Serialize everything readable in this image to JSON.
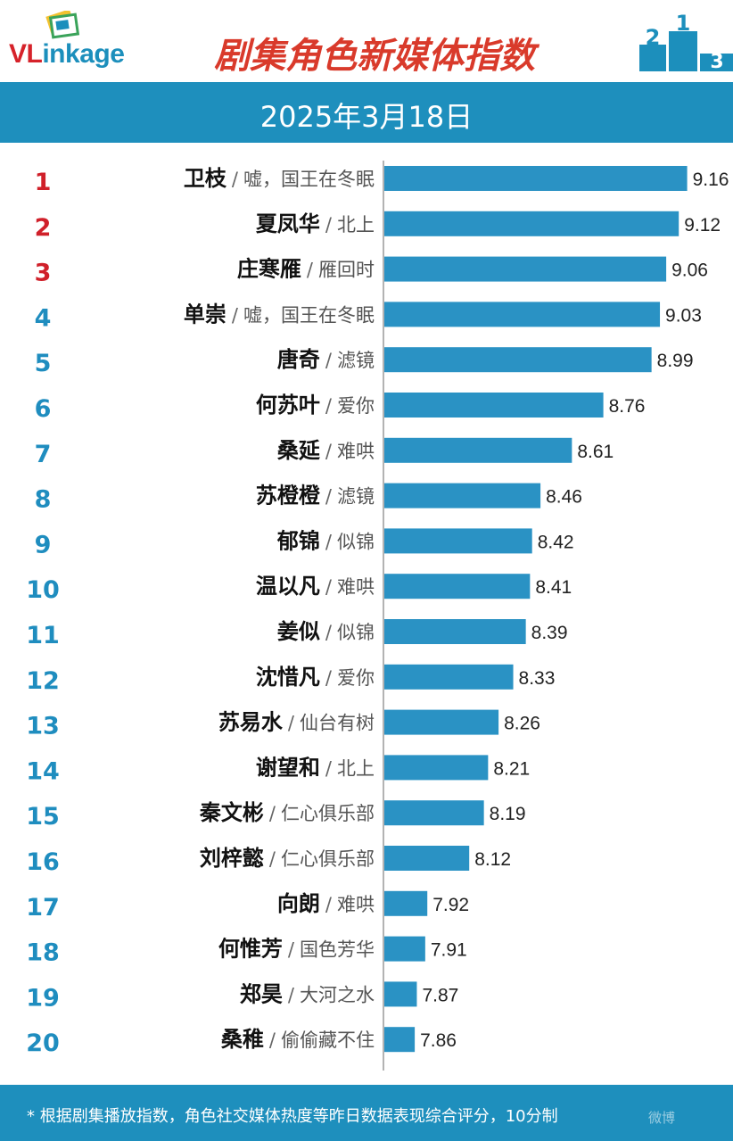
{
  "header": {
    "logo": {
      "prefix": "VL",
      "suffix": "inkage"
    },
    "title": "剧集角色新媒体指数",
    "date": "2025年3月18日",
    "podium_digits": [
      "2",
      "1",
      "3"
    ]
  },
  "colors": {
    "bar": "#2a92c4",
    "band": "#1e8fbd",
    "rank_top": "#d0202a",
    "rank_rest": "#1f8dbf",
    "title": "#d93a2b"
  },
  "chart_data": {
    "type": "bar",
    "orientation": "horizontal",
    "categories": [
      {
        "rank": "1",
        "character": "卫枝",
        "show": "嘘，国王在冬眠"
      },
      {
        "rank": "2",
        "character": "夏凤华",
        "show": "北上"
      },
      {
        "rank": "3",
        "character": "庄寒雁",
        "show": "雁回时"
      },
      {
        "rank": "4",
        "character": "单崇",
        "show": "嘘，国王在冬眠"
      },
      {
        "rank": "5",
        "character": "唐奇",
        "show": "滤镜"
      },
      {
        "rank": "6",
        "character": "何苏叶",
        "show": "爱你"
      },
      {
        "rank": "7",
        "character": "桑延",
        "show": "难哄"
      },
      {
        "rank": "8",
        "character": "苏橙橙",
        "show": "滤镜"
      },
      {
        "rank": "9",
        "character": "郁锦",
        "show": "似锦"
      },
      {
        "rank": "10",
        "character": "温以凡",
        "show": "难哄"
      },
      {
        "rank": "11",
        "character": "姜似",
        "show": "似锦"
      },
      {
        "rank": "12",
        "character": "沈惜凡",
        "show": "爱你"
      },
      {
        "rank": "13",
        "character": "苏易水",
        "show": "仙台有树"
      },
      {
        "rank": "14",
        "character": "谢望和",
        "show": "北上"
      },
      {
        "rank": "15",
        "character": "秦文彬",
        "show": "仁心俱乐部"
      },
      {
        "rank": "16",
        "character": "刘梓懿",
        "show": "仁心俱乐部"
      },
      {
        "rank": "17",
        "character": "向朗",
        "show": "难哄"
      },
      {
        "rank": "18",
        "character": "何惟芳",
        "show": "国色芳华"
      },
      {
        "rank": "19",
        "character": "郑昊",
        "show": "大河之水"
      },
      {
        "rank": "20",
        "character": "桑稚",
        "show": "偷偷藏不住"
      }
    ],
    "values": [
      9.16,
      9.12,
      9.06,
      9.03,
      8.99,
      8.76,
      8.61,
      8.46,
      8.42,
      8.41,
      8.39,
      8.33,
      8.26,
      8.21,
      8.19,
      8.12,
      7.92,
      7.91,
      7.87,
      7.86
    ],
    "value_labels": [
      "9.16",
      "9.12",
      "9.06",
      "9.03",
      "8.99",
      "8.76",
      "8.61",
      "8.46",
      "8.42",
      "8.41",
      "8.39",
      "8.33",
      "8.26",
      "8.21",
      "8.19",
      "8.12",
      "7.92",
      "7.91",
      "7.87",
      "7.86"
    ],
    "separator": "/",
    "top_ranks_highlighted": 3,
    "grid": false,
    "legend": false
  },
  "footer": {
    "note": "* 根据剧集播放指数，角色社交媒体热度等昨日数据表现综合评分，10分制",
    "watermark": "微博"
  }
}
